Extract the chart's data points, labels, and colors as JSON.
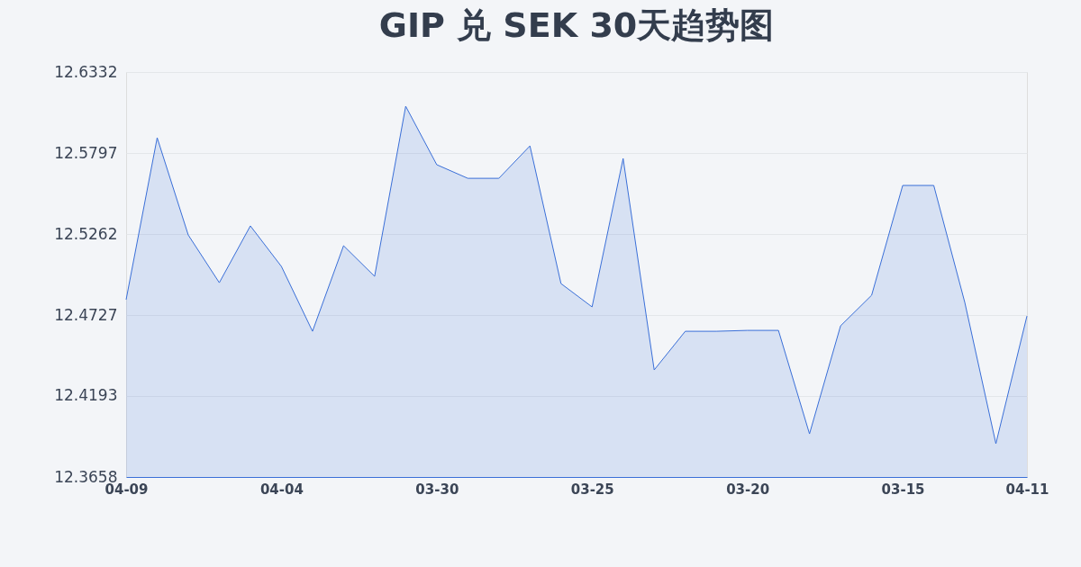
{
  "chart_data": {
    "type": "area",
    "title": "GIP 兑 SEK 30天趋势图",
    "categories": [
      "04-09",
      null,
      null,
      null,
      null,
      "04-04",
      null,
      null,
      null,
      null,
      "03-30",
      null,
      null,
      null,
      null,
      "03-25",
      null,
      null,
      null,
      null,
      "03-20",
      null,
      null,
      null,
      null,
      "03-15",
      null,
      null,
      null,
      "04-11"
    ],
    "series": [
      {
        "color": "#3a6fd8",
        "values": [
          12.4829,
          12.5898,
          12.5256,
          12.4941,
          12.5316,
          12.5048,
          12.462,
          12.5185,
          12.4983,
          12.6106,
          12.572,
          12.563,
          12.563,
          12.5844,
          12.4935,
          12.4781,
          12.5761,
          12.4365,
          12.462,
          12.462,
          12.4626,
          12.4626,
          12.3943,
          12.4656,
          12.4858,
          12.5583,
          12.5583,
          12.481,
          12.3878,
          12.4721
        ]
      }
    ],
    "ylim": [
      12.3658,
      12.6332
    ],
    "yticks": [
      12.3658,
      12.4193,
      12.4727,
      12.5262,
      12.5797,
      12.6332
    ],
    "grid": "y"
  }
}
